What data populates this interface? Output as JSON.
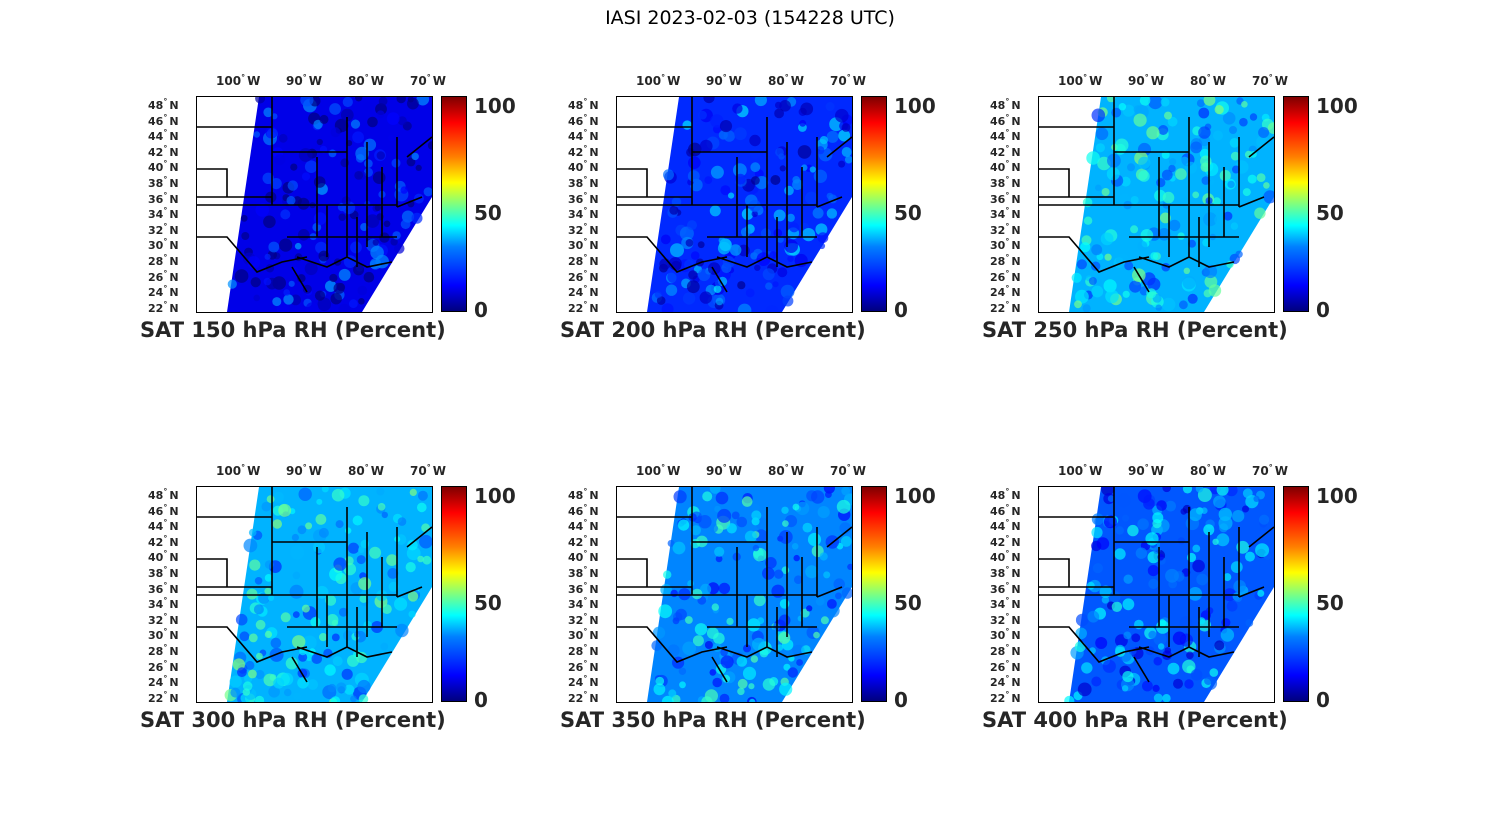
{
  "title": "IASI 2023-02-03 (154228 UTC)",
  "lon_ticks": [
    "100",
    "90",
    "80",
    "70"
  ],
  "lon_hemisphere": "W",
  "lat_ticks": [
    "48",
    "46",
    "44",
    "42",
    "40",
    "38",
    "36",
    "34",
    "32",
    "30",
    "28",
    "26",
    "24",
    "22"
  ],
  "lat_hemisphere": "N",
  "colorbar": {
    "min": "0",
    "mid": "50",
    "max": "100",
    "colormap": "jet"
  },
  "panels": [
    {
      "title": "SAT 150 hPa RH (Percent)",
      "level_hpa": 150,
      "typical_rh": 8
    },
    {
      "title": "SAT 200 hPa RH (Percent)",
      "level_hpa": 200,
      "typical_rh": 15
    },
    {
      "title": "SAT 250 hPa RH (Percent)",
      "level_hpa": 250,
      "typical_rh": 30
    },
    {
      "title": "SAT 300 hPa RH (Percent)",
      "level_hpa": 300,
      "typical_rh": 30
    },
    {
      "title": "SAT 350 hPa RH (Percent)",
      "level_hpa": 350,
      "typical_rh": 25
    },
    {
      "title": "SAT 400 hPa RH (Percent)",
      "level_hpa": 400,
      "typical_rh": 20
    }
  ]
}
